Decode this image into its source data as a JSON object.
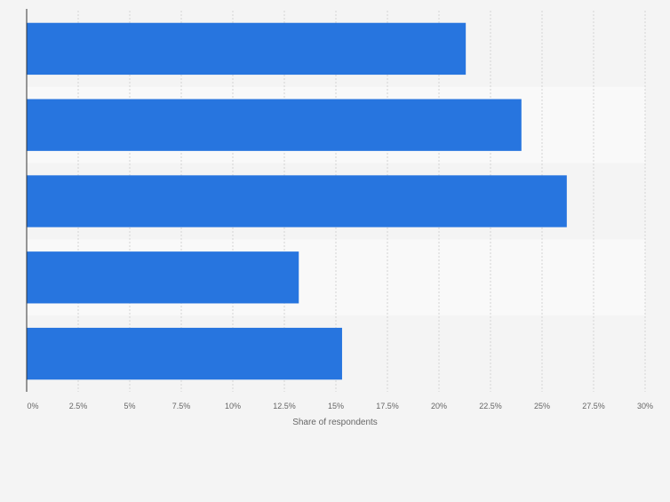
{
  "chart_data": {
    "type": "bar",
    "orientation": "horizontal",
    "categories": [
      "",
      "",
      "",
      "",
      ""
    ],
    "values": [
      21.3,
      24.0,
      26.2,
      13.2,
      15.3
    ],
    "xlabel": "Share of respondents",
    "xlim": [
      0,
      30
    ],
    "x_ticks": [
      "0%",
      "2.5%",
      "5%",
      "7.5%",
      "10%",
      "12.5%",
      "15%",
      "17.5%",
      "20%",
      "22.5%",
      "25%",
      "27.5%",
      "30%"
    ],
    "grid": true,
    "bar_color": "#2775df"
  }
}
